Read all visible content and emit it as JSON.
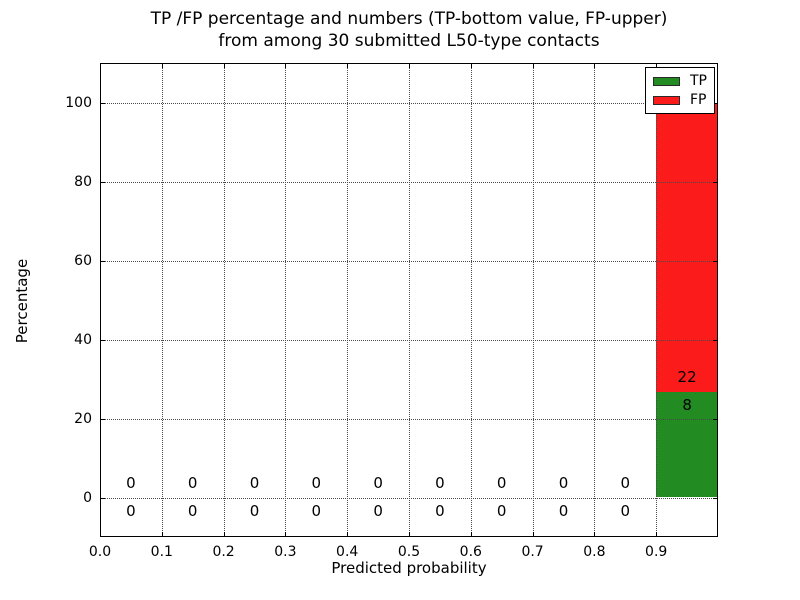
{
  "title": {
    "line1": "TP /FP percentage and numbers (TP-bottom value, FP-upper)",
    "line2": "from among 30 submitted L50-type contacts"
  },
  "axes": {
    "x_label": "Predicted probability",
    "y_label": "Percentage",
    "x_ticks": [
      {
        "value": 0.0,
        "label": "0.0"
      },
      {
        "value": 0.1,
        "label": "0.1"
      },
      {
        "value": 0.2,
        "label": "0.2"
      },
      {
        "value": 0.3,
        "label": "0.3"
      },
      {
        "value": 0.4,
        "label": "0.4"
      },
      {
        "value": 0.5,
        "label": "0.5"
      },
      {
        "value": 0.6,
        "label": "0.6"
      },
      {
        "value": 0.7,
        "label": "0.7"
      },
      {
        "value": 0.8,
        "label": "0.8"
      },
      {
        "value": 0.9,
        "label": "0.9"
      }
    ],
    "y_ticks": [
      {
        "value": 0,
        "label": "0"
      },
      {
        "value": 20,
        "label": "20"
      },
      {
        "value": 40,
        "label": "40"
      },
      {
        "value": 60,
        "label": "60"
      },
      {
        "value": 80,
        "label": "80"
      },
      {
        "value": 100,
        "label": "100"
      }
    ]
  },
  "legend": {
    "items": [
      {
        "label": "TP",
        "color": "#228b22"
      },
      {
        "label": "FP",
        "color": "#fb1b1b"
      }
    ]
  },
  "chart_data": {
    "type": "bar",
    "stacked": true,
    "title": "TP /FP percentage and numbers (TP-bottom value, FP-upper) from among 30 submitted L50-type contacts",
    "xlabel": "Predicted probability",
    "ylabel": "Percentage",
    "xlim": [
      0.0,
      1.0
    ],
    "ylim": [
      -10,
      110
    ],
    "grid": true,
    "legend_position": "upper right",
    "total_submitted": 30,
    "bin_width": 0.1,
    "categories": [
      "0.0-0.1",
      "0.1-0.2",
      "0.2-0.3",
      "0.3-0.4",
      "0.4-0.5",
      "0.5-0.6",
      "0.6-0.7",
      "0.7-0.8",
      "0.8-0.9",
      "0.9-1.0"
    ],
    "bin_centers": [
      0.05,
      0.15,
      0.25,
      0.35,
      0.45,
      0.55,
      0.65,
      0.75,
      0.85,
      0.95
    ],
    "series": [
      {
        "name": "TP",
        "color": "#228b22",
        "counts": [
          0,
          0,
          0,
          0,
          0,
          0,
          0,
          0,
          0,
          8
        ],
        "percent": [
          0,
          0,
          0,
          0,
          0,
          0,
          0,
          0,
          0,
          26.67
        ]
      },
      {
        "name": "FP",
        "color": "#fb1b1b",
        "counts": [
          0,
          0,
          0,
          0,
          0,
          0,
          0,
          0,
          0,
          22
        ],
        "percent": [
          0,
          0,
          0,
          0,
          0,
          0,
          0,
          0,
          0,
          73.33
        ]
      }
    ]
  }
}
